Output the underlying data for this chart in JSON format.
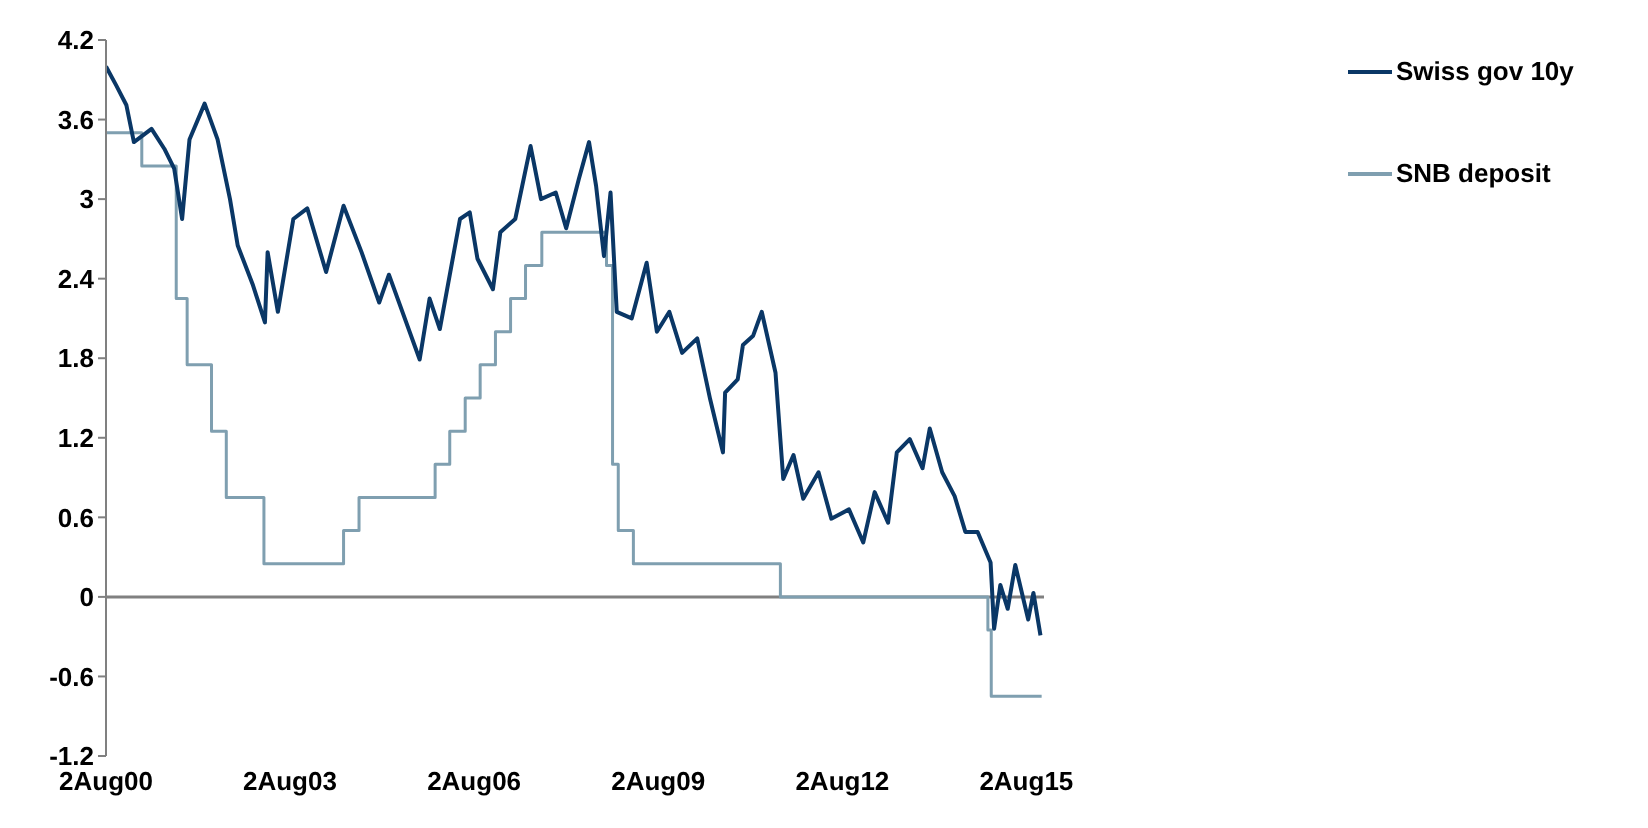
{
  "chart_data": {
    "type": "line",
    "xlim": [
      "2000-08-02",
      "2015-11-15"
    ],
    "xticks": [
      {
        "value": "2000-08-02",
        "label": "2Aug00"
      },
      {
        "value": "2003-08-02",
        "label": "2Aug03"
      },
      {
        "value": "2006-08-02",
        "label": "2Aug06"
      },
      {
        "value": "2009-08-02",
        "label": "2Aug09"
      },
      {
        "value": "2012-08-02",
        "label": "2Aug12"
      },
      {
        "value": "2015-08-02",
        "label": "2Aug15"
      }
    ],
    "ylim": [
      -1.2,
      4.2
    ],
    "yticks": [
      -1.2,
      -0.6,
      0,
      0.6,
      1.2,
      1.8,
      2.4,
      3,
      3.6,
      4.2
    ],
    "legend": "top right",
    "ref_lines": [
      {
        "axis": "y",
        "value": 0,
        "color": "#808080"
      }
    ],
    "series": [
      {
        "name": "Swiss gov 10y",
        "color": "#0a3766",
        "x": [
          "2000-08-02",
          "2000-10-01",
          "2000-12-01",
          "2001-01-15",
          "2001-04-30",
          "2001-07-15",
          "2001-09-12",
          "2001-10-29",
          "2001-12-12",
          "2002-03-12",
          "2002-05-28",
          "2002-08-10",
          "2002-09-25",
          "2002-12-25",
          "2003-03-06",
          "2003-03-22",
          "2003-05-22",
          "2003-08-22",
          "2003-11-13",
          "2004-03-04",
          "2004-06-16",
          "2004-10-01",
          "2005-01-14",
          "2005-03-13",
          "2005-09-12",
          "2005-11-10",
          "2006-01-10",
          "2006-05-10",
          "2006-07-07",
          "2006-08-22",
          "2006-11-22",
          "2007-01-05",
          "2007-04-04",
          "2007-07-04",
          "2007-09-04",
          "2007-12-01",
          "2008-02-01",
          "2008-04-16",
          "2008-06-16",
          "2008-07-28",
          "2008-09-13",
          "2008-10-22",
          "2008-11-28",
          "2009-02-25",
          "2009-05-25",
          "2009-07-25",
          "2009-10-07",
          "2009-12-22",
          "2010-03-22",
          "2010-06-07",
          "2010-08-22",
          "2010-09-04",
          "2010-11-18",
          "2010-12-19",
          "2011-02-18",
          "2011-04-10",
          "2011-07-01",
          "2011-08-16",
          "2011-10-16",
          "2011-12-13",
          "2012-03-13",
          "2012-05-28",
          "2012-09-10",
          "2012-12-04",
          "2013-02-10",
          "2013-05-01",
          "2013-06-22",
          "2013-09-07",
          "2013-11-22",
          "2014-01-04",
          "2014-03-19",
          "2014-06-01",
          "2014-08-04",
          "2014-10-16",
          "2015-01-01",
          "2015-01-22",
          "2015-02-28",
          "2015-04-13",
          "2015-05-28",
          "2015-08-13",
          "2015-09-13",
          "2015-10-25"
        ],
        "values": [
          4.0,
          3.86,
          3.71,
          3.43,
          3.53,
          3.38,
          3.23,
          2.85,
          3.45,
          3.72,
          3.45,
          3.0,
          2.65,
          2.35,
          2.07,
          2.6,
          2.15,
          2.85,
          2.93,
          2.45,
          2.95,
          2.6,
          2.22,
          2.43,
          1.79,
          2.25,
          2.02,
          2.85,
          2.9,
          2.55,
          2.32,
          2.75,
          2.85,
          3.4,
          3.0,
          3.05,
          2.78,
          3.15,
          3.43,
          3.1,
          2.57,
          3.05,
          2.15,
          2.1,
          2.52,
          2.0,
          2.15,
          1.84,
          1.95,
          1.49,
          1.09,
          1.54,
          1.64,
          1.9,
          1.97,
          2.15,
          1.69,
          0.89,
          1.07,
          0.74,
          0.94,
          0.59,
          0.66,
          0.41,
          0.79,
          0.56,
          1.09,
          1.19,
          0.97,
          1.27,
          0.94,
          0.76,
          0.49,
          0.49,
          0.26,
          -0.24,
          0.09,
          -0.09,
          0.24,
          -0.17,
          0.03,
          -0.29
        ]
      },
      {
        "name": "SNB deposit",
        "type": "step",
        "color": "#7f9fb0",
        "x": [
          "2000-08-02",
          "2001-03-03",
          "2001-09-24",
          "2001-11-28",
          "2002-04-22",
          "2002-07-19",
          "2003-02-28",
          "2004-06-16",
          "2004-09-16",
          "2005-12-13",
          "2006-03-10",
          "2006-06-10",
          "2006-09-07",
          "2006-12-07",
          "2007-03-07",
          "2007-06-04",
          "2007-09-09",
          "2008-09-28",
          "2008-11-03",
          "2008-12-07",
          "2009-03-07",
          "2011-07-30",
          "2014-12-16",
          "2015-01-05",
          "2015-11-01"
        ],
        "values": [
          3.5,
          3.25,
          2.25,
          1.75,
          1.25,
          0.75,
          0.25,
          0.5,
          0.75,
          1.0,
          1.25,
          1.5,
          1.75,
          2.0,
          2.25,
          2.5,
          2.75,
          2.5,
          1.0,
          0.5,
          0.25,
          0.0,
          -0.25,
          -0.75,
          -0.75
        ]
      }
    ]
  }
}
